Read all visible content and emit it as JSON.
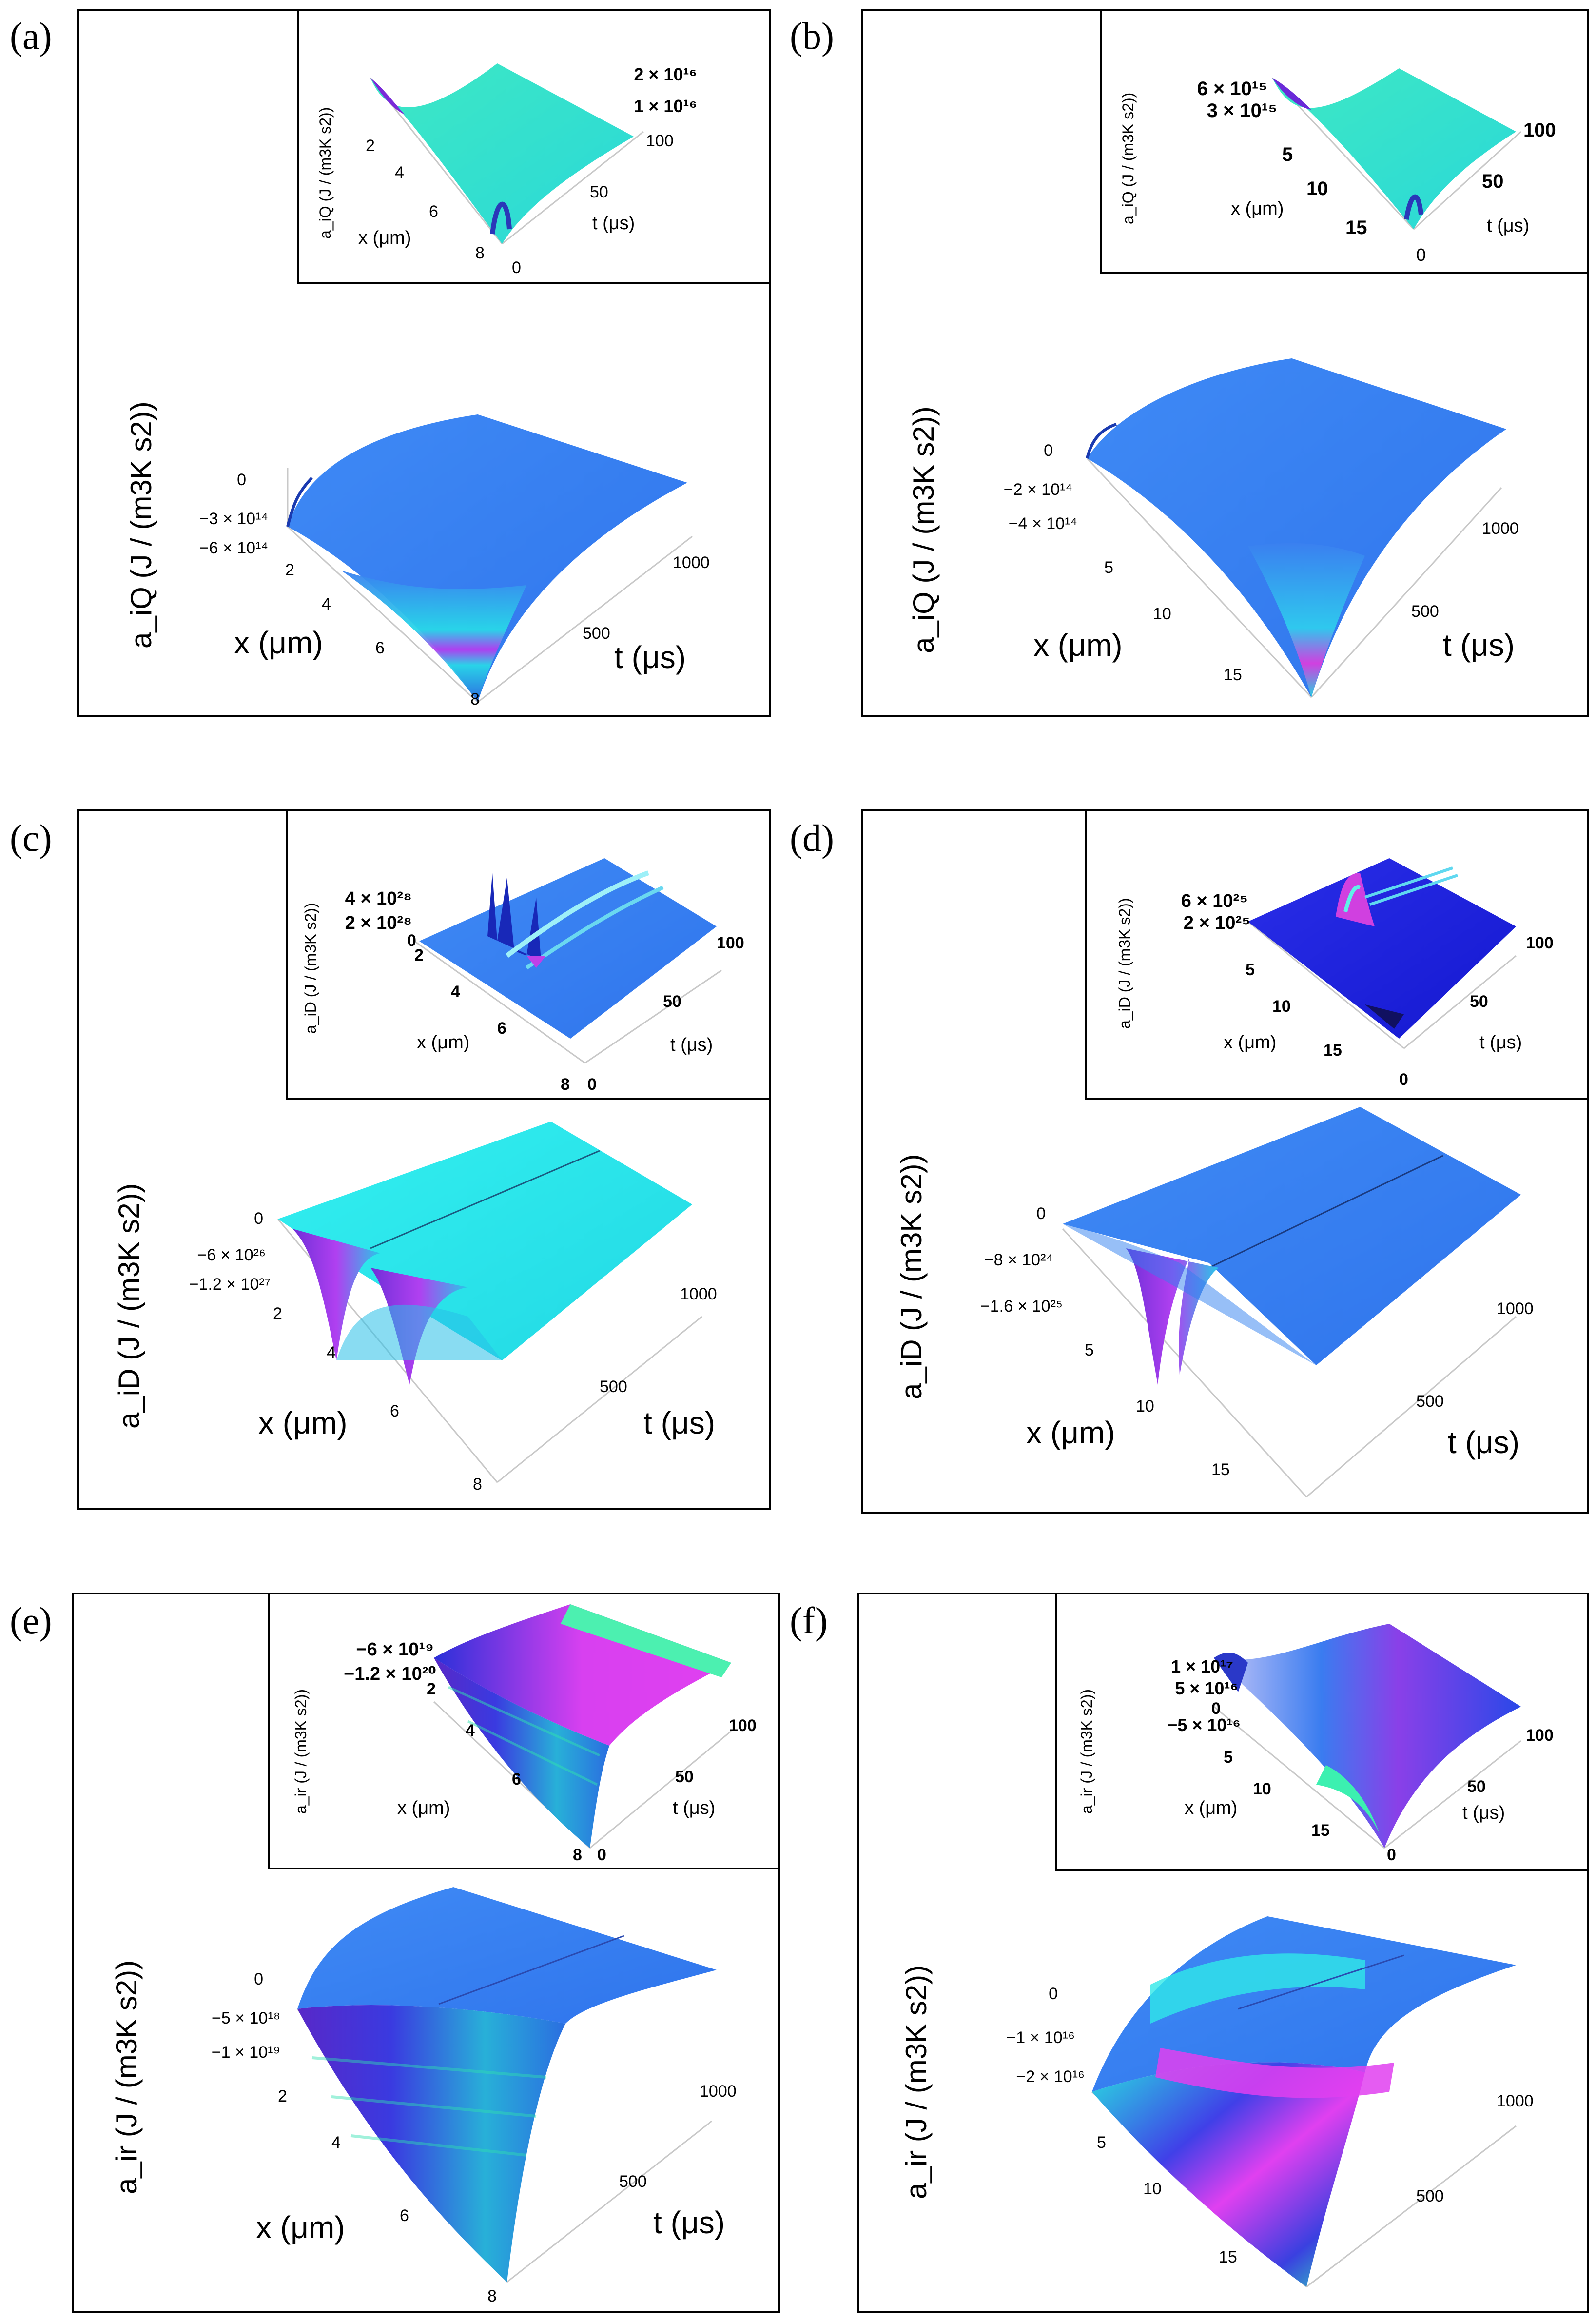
{
  "panels": [
    {
      "id": "a",
      "label": "(a)",
      "main": {
        "z_label": "a_iQ (J / (m3K s2))",
        "z_ticks": [
          "0",
          "−3 × 10¹⁴",
          "−6 × 10¹⁴"
        ],
        "x_label": "x (μm)",
        "x_ticks": [
          "2",
          "4",
          "6",
          "8"
        ],
        "t_label": "t (μs)",
        "t_ticks": [
          "500",
          "1000"
        ]
      },
      "inset": {
        "z_label": "a_iQ (J / (m3K s2))",
        "z_ticks": [
          "2 × 10¹⁶",
          "1 × 10¹⁶"
        ],
        "x_label": "x (μm)",
        "x_ticks": [
          "2",
          "4",
          "6",
          "8"
        ],
        "t_label": "t (μs)",
        "t_ticks": [
          "0",
          "50",
          "100"
        ]
      }
    },
    {
      "id": "b",
      "label": "(b)",
      "main": {
        "z_label": "a_iQ (J / (m3K s2))",
        "z_ticks": [
          "0",
          "−2 × 10¹⁴",
          "−4 × 10¹⁴"
        ],
        "x_label": "x (μm)",
        "x_ticks": [
          "5",
          "10",
          "15"
        ],
        "t_label": "t (μs)",
        "t_ticks": [
          "500",
          "1000"
        ]
      },
      "inset": {
        "z_label": "a_iQ (J / (m3K s2))",
        "z_ticks": [
          "6 × 10¹⁵",
          "3 × 10¹⁵"
        ],
        "x_label": "x (μm)",
        "x_ticks": [
          "5",
          "10",
          "15"
        ],
        "t_label": "t (μs)",
        "t_ticks": [
          "0",
          "50",
          "100"
        ]
      }
    },
    {
      "id": "c",
      "label": "(c)",
      "main": {
        "z_label": "a_iD (J / (m3K s2))",
        "z_ticks": [
          "0",
          "−6 × 10²⁶",
          "−1.2 × 10²⁷"
        ],
        "x_label": "x (μm)",
        "x_ticks": [
          "2",
          "4",
          "6",
          "8"
        ],
        "t_label": "t (μs)",
        "t_ticks": [
          "500",
          "1000"
        ]
      },
      "inset": {
        "z_label": "a_iD (J / (m3K s2))",
        "z_ticks": [
          "4 × 10²⁸",
          "2 × 10²⁸",
          "0"
        ],
        "x_label": "x (μm)",
        "x_ticks": [
          "2",
          "4",
          "6",
          "8"
        ],
        "t_label": "t (μs)",
        "t_ticks": [
          "0",
          "50",
          "100"
        ]
      }
    },
    {
      "id": "d",
      "label": "(d)",
      "main": {
        "z_label": "a_iD (J / (m3K s2))",
        "z_ticks": [
          "0",
          "−8 × 10²⁴",
          "−1.6 × 10²⁵"
        ],
        "x_label": "x (μm)",
        "x_ticks": [
          "5",
          "10",
          "15"
        ],
        "t_label": "t (μs)",
        "t_ticks": [
          "500",
          "1000"
        ]
      },
      "inset": {
        "z_label": "a_iD (J / (m3K s2))",
        "z_ticks": [
          "6 × 10²⁵",
          "2 × 10²⁵"
        ],
        "x_label": "x (μm)",
        "x_ticks": [
          "5",
          "10",
          "15"
        ],
        "t_label": "t (μs)",
        "t_ticks": [
          "0",
          "50",
          "100"
        ]
      }
    },
    {
      "id": "e",
      "label": "(e)",
      "main": {
        "z_label": "a_ir (J / (m3K s2))",
        "z_ticks": [
          "0",
          "−5 × 10¹⁸",
          "−1 × 10¹⁹"
        ],
        "x_label": "x (μm)",
        "x_ticks": [
          "2",
          "4",
          "6",
          "8"
        ],
        "t_label": "t (μs)",
        "t_ticks": [
          "500",
          "1000"
        ]
      },
      "inset": {
        "z_label": "a_ir (J / (m3K s2))",
        "z_ticks": [
          "−6 × 10¹⁹",
          "−1.2 × 10²⁰"
        ],
        "x_label": "x (μm)",
        "x_ticks": [
          "2",
          "4",
          "6",
          "8"
        ],
        "t_label": "t (μs)",
        "t_ticks": [
          "0",
          "50",
          "100"
        ]
      }
    },
    {
      "id": "f",
      "label": "(f)",
      "main": {
        "z_label": "a_ir (J / (m3K s2))",
        "z_ticks": [
          "0",
          "−1 × 10¹⁶",
          "−2 × 10¹⁶"
        ],
        "x_label": "",
        "x_ticks": [
          "5",
          "10",
          "15"
        ],
        "t_label": "",
        "t_ticks": [
          "500",
          "1000"
        ]
      },
      "inset": {
        "z_label": "a_ir (J / (m3K s2))",
        "z_ticks": [
          "1 × 10¹⁷",
          "5 × 10¹⁶",
          "0",
          "−5 × 10¹⁶"
        ],
        "x_label": "x (μm)",
        "x_ticks": [
          "5",
          "10",
          "15"
        ],
        "t_label": "t (μs)",
        "t_ticks": [
          "0",
          "50",
          "100"
        ]
      }
    }
  ],
  "chart_data": [
    {
      "type": "surface3d",
      "panel": "(a)",
      "zlabel": "a_iQ (J / (m3K s2))",
      "xlabel": "x (μm)",
      "tlabel": "t (μs)",
      "xlim": [
        0,
        8
      ],
      "tlim": [
        0,
        1000
      ],
      "zlim": [
        -600000000000000,
        0
      ],
      "colormap": [
        "#3a7cf0",
        "#25e0e8",
        "#b43cf0"
      ]
    },
    {
      "type": "surface3d",
      "panel": "(a) inset",
      "zlabel": "a_iQ (J / (m3K s2))",
      "xlabel": "x (μm)",
      "tlabel": "t (μs)",
      "xlim": [
        0,
        8
      ],
      "tlim": [
        0,
        100
      ],
      "zlim": [
        0,
        20000000000000000
      ],
      "colormap": [
        "#2ad8d0",
        "#5cf0a8",
        "#8a40e0"
      ]
    },
    {
      "type": "surface3d",
      "panel": "(b)",
      "zlabel": "a_iQ (J / (m3K s2))",
      "xlabel": "x (μm)",
      "tlabel": "t (μs)",
      "xlim": [
        0,
        17
      ],
      "tlim": [
        0,
        1000
      ],
      "zlim": [
        -400000000000000,
        0
      ],
      "colormap": [
        "#3a7cf0",
        "#25e0e8",
        "#d040e0"
      ]
    },
    {
      "type": "surface3d",
      "panel": "(b) inset",
      "zlabel": "a_iQ (J / (m3K s2))",
      "xlabel": "x (μm)",
      "tlabel": "t (μs)",
      "xlim": [
        0,
        17
      ],
      "tlim": [
        0,
        100
      ],
      "zlim": [
        0,
        6000000000000000
      ],
      "colormap": [
        "#2ad8d0",
        "#5cf0a8",
        "#8a40e0"
      ]
    },
    {
      "type": "surface3d",
      "panel": "(c)",
      "zlabel": "a_iD (J / (m3K s2))",
      "xlabel": "x (μm)",
      "tlabel": "t (μs)",
      "xlim": [
        0,
        8
      ],
      "tlim": [
        0,
        1000
      ],
      "zlim": [
        -1.2e+27,
        0
      ],
      "colormap": [
        "#2ee8e8",
        "#3a8cf0",
        "#a030e0"
      ]
    },
    {
      "type": "surface3d",
      "panel": "(c) inset",
      "zlabel": "a_iD (J / (m3K s2))",
      "xlabel": "x (μm)",
      "tlabel": "t (μs)",
      "xlim": [
        0,
        8
      ],
      "tlim": [
        0,
        100
      ],
      "zlim": [
        0,
        4e+28
      ],
      "colormap": [
        "#3a7cf0",
        "#25e0e8",
        "#a030e0"
      ]
    },
    {
      "type": "surface3d",
      "panel": "(d)",
      "zlabel": "a_iD (J / (m3K s2))",
      "xlabel": "x (μm)",
      "tlabel": "t (μs)",
      "xlim": [
        0,
        17
      ],
      "tlim": [
        0,
        1000
      ],
      "zlim": [
        -1.6e+25,
        0
      ],
      "colormap": [
        "#2f7ff0",
        "#25e0e8",
        "#a030e0"
      ]
    },
    {
      "type": "surface3d",
      "panel": "(d) inset",
      "zlabel": "a_iD (J / (m3K s2))",
      "xlabel": "x (μm)",
      "tlabel": "t (μs)",
      "xlim": [
        0,
        17
      ],
      "tlim": [
        0,
        100
      ],
      "zlim": [
        0,
        6e+25
      ],
      "colormap": [
        "#1418e8",
        "#25e0e8",
        "#d040e0"
      ]
    },
    {
      "type": "surface3d",
      "panel": "(e)",
      "zlabel": "a_ir (J / (m3K s2))",
      "xlabel": "x (μm)",
      "tlabel": "t (μs)",
      "xlim": [
        0,
        8
      ],
      "tlim": [
        0,
        1000
      ],
      "zlim": [
        -1e+19,
        0
      ],
      "colormap": [
        "#3a7cf0",
        "#25e0e8",
        "#8030d0"
      ]
    },
    {
      "type": "surface3d",
      "panel": "(e) inset",
      "zlabel": "a_ir (J / (m3K s2))",
      "xlabel": "x (μm)",
      "tlabel": "t (μs)",
      "xlim": [
        0,
        8
      ],
      "tlim": [
        0,
        100
      ],
      "zlim": [
        -1.2e+20,
        0
      ],
      "colormap": [
        "#2a30e0",
        "#e040f0",
        "#4cf0b0"
      ]
    },
    {
      "type": "surface3d",
      "panel": "(f)",
      "zlabel": "a_ir (J / (m3K s2))",
      "xlabel": "",
      "tlabel": "",
      "xlim": [
        0,
        17
      ],
      "tlim": [
        0,
        1000
      ],
      "zlim": [
        -20000000000000000,
        0
      ],
      "colormap": [
        "#3a7cf0",
        "#25e0e8",
        "#e040f0"
      ]
    },
    {
      "type": "surface3d",
      "panel": "(f) inset",
      "zlabel": "a_ir (J / (m3K s2))",
      "xlabel": "x (μm)",
      "tlabel": "t (μs)",
      "xlim": [
        0,
        17
      ],
      "tlim": [
        0,
        100
      ],
      "zlim": [
        -50000000000000000,
        100000000000000000
      ],
      "colormap": [
        "#3a7cf0",
        "#d040f0",
        "#4cf0b0"
      ]
    }
  ]
}
